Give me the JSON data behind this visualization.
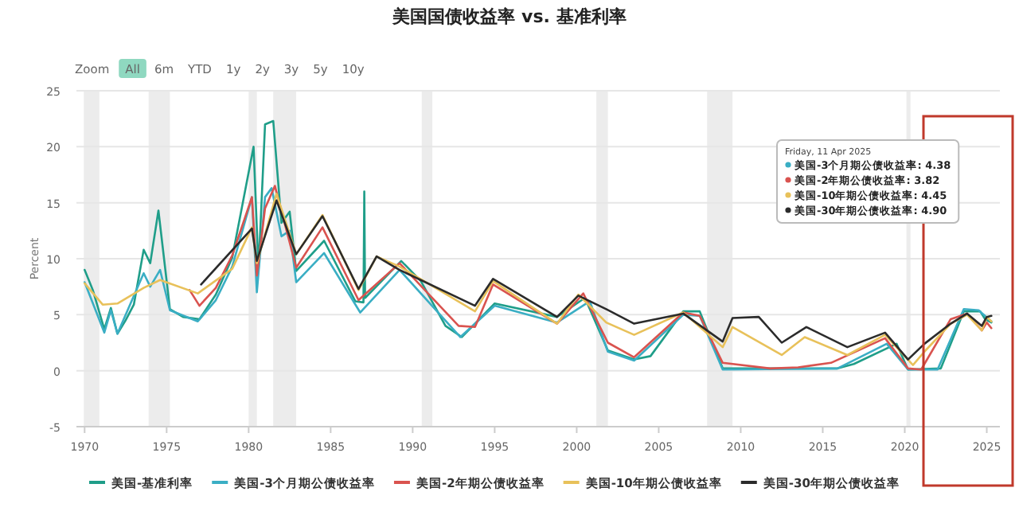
{
  "chart_data": {
    "type": "line",
    "title": "美国国债收益率 vs. 基准利率",
    "ylabel": "Percent",
    "xlim": [
      1969.5,
      2025.8
    ],
    "xticks": [
      1970,
      1975,
      1980,
      1985,
      1990,
      1995,
      2000,
      2005,
      2010,
      2015,
      2020,
      2025
    ],
    "ylim": [
      -5,
      25
    ],
    "yticks": [
      -5,
      0,
      5,
      10,
      15,
      20,
      25
    ],
    "grid": "y",
    "legend": "bottom",
    "line_style": "solid",
    "marker": "none",
    "series": [
      {
        "name": "美国-基准利率",
        "color": "#1f9e89",
        "x": [
          1970.0,
          1970.5,
          1971.2,
          1971.6,
          1972.0,
          1972.5,
          1973.0,
          1973.6,
          1974.0,
          1974.5,
          1975.2,
          1976.0,
          1977.0,
          1978.0,
          1979.0,
          1980.3,
          1980.6,
          1981.0,
          1981.5,
          1982.0,
          1982.5,
          1982.9,
          1984.6,
          1986.5,
          1987.0,
          1987.05,
          1987.1,
          1989.3,
          1990.5,
          1992.0,
          1993.0,
          1995.0,
          1998.8,
          2000.5,
          2001.9,
          2003.5,
          2004.5,
          2006.5,
          2007.5,
          2008.9,
          2015.9,
          2016.9,
          2019.5,
          2020.2,
          2022.2,
          2023.6,
          2024.6,
          2024.9,
          2025.28
        ],
        "values": [
          9.0,
          7.2,
          3.7,
          5.6,
          3.3,
          4.5,
          5.9,
          10.8,
          9.6,
          14.3,
          5.5,
          4.8,
          4.6,
          6.8,
          10.1,
          20.0,
          9.0,
          22.0,
          22.3,
          13.2,
          14.2,
          8.9,
          11.6,
          6.2,
          6.1,
          16.0,
          6.5,
          9.8,
          8.0,
          4.0,
          3.0,
          6.0,
          4.8,
          6.5,
          1.8,
          1.0,
          1.3,
          5.3,
          5.3,
          0.2,
          0.2,
          0.6,
          2.4,
          0.1,
          0.2,
          5.3,
          5.3,
          4.6,
          4.3
        ]
      },
      {
        "name": "美国-3个月期公债收益率",
        "color": "#3aaec4",
        "x": [
          1970.0,
          1971.2,
          1971.6,
          1972.0,
          1973.6,
          1974.0,
          1974.6,
          1975.2,
          1976.9,
          1978.0,
          1979.0,
          1980.2,
          1980.5,
          1981.0,
          1981.4,
          1982.0,
          1982.5,
          1982.9,
          1984.6,
          1986.8,
          1989.2,
          1992.9,
          1995.0,
          1998.8,
          2000.8,
          2001.9,
          2003.5,
          2006.5,
          2007.5,
          2008.9,
          2015.9,
          2018.9,
          2020.2,
          2022.0,
          2023.6,
          2024.5,
          2025.28
        ],
        "values": [
          7.9,
          3.4,
          5.4,
          3.3,
          8.7,
          7.5,
          9.0,
          5.4,
          4.4,
          6.3,
          9.3,
          15.5,
          7.0,
          15.5,
          16.3,
          12.0,
          12.5,
          7.9,
          10.5,
          5.2,
          9.0,
          3.0,
          5.8,
          4.3,
          6.2,
          1.7,
          0.9,
          5.0,
          4.9,
          0.1,
          0.2,
          2.4,
          0.1,
          0.1,
          5.5,
          5.4,
          4.4
        ]
      },
      {
        "name": "美国-2年期公债收益率",
        "color": "#d9534f",
        "x": [
          1976.4,
          1977.0,
          1978.0,
          1979.0,
          1980.2,
          1980.5,
          1981.0,
          1981.6,
          1982.9,
          1984.5,
          1986.7,
          1989.2,
          1992.8,
          1993.8,
          1994.9,
          1998.8,
          2000.4,
          2001.9,
          2003.5,
          2006.5,
          2007.5,
          2008.9,
          2011.8,
          2013.5,
          2015.5,
          2018.8,
          2020.2,
          2021.0,
          2022.8,
          2023.8,
          2024.7,
          2025.0,
          2025.28
        ],
        "values": [
          7.2,
          5.8,
          7.4,
          10.3,
          15.5,
          8.5,
          14.5,
          16.5,
          9.2,
          12.8,
          6.3,
          9.6,
          4.0,
          3.9,
          7.7,
          4.2,
          6.9,
          2.5,
          1.2,
          5.2,
          4.9,
          0.7,
          0.2,
          0.3,
          0.7,
          2.9,
          0.2,
          0.1,
          4.6,
          5.1,
          3.6,
          4.3,
          3.8
        ]
      },
      {
        "name": "美国-10年期公债收益率",
        "color": "#e8c15a",
        "x": [
          1970.0,
          1971.1,
          1972.0,
          1973.6,
          1974.6,
          1976.9,
          1979.0,
          1980.2,
          1980.5,
          1981.7,
          1982.9,
          1984.5,
          1986.7,
          1987.8,
          1989.2,
          1993.8,
          1994.9,
          1998.8,
          2000.1,
          2001.8,
          2003.5,
          2006.5,
          2008.9,
          2009.5,
          2012.5,
          2013.9,
          2016.5,
          2018.8,
          2020.5,
          2021.2,
          2022.8,
          2023.8,
          2024.7,
          2025.0,
          2025.28
        ],
        "values": [
          7.8,
          5.9,
          6.0,
          7.4,
          8.1,
          6.9,
          9.1,
          12.8,
          9.6,
          15.8,
          10.4,
          13.9,
          7.2,
          10.2,
          9.3,
          5.3,
          8.0,
          4.2,
          6.8,
          4.3,
          3.2,
          5.2,
          2.1,
          3.9,
          1.4,
          3.0,
          1.4,
          3.2,
          0.5,
          1.7,
          4.2,
          5.0,
          3.6,
          4.8,
          4.4
        ]
      },
      {
        "name": "美国-30年期公债收益率",
        "color": "#2b2b2b",
        "x": [
          1977.1,
          1980.2,
          1980.5,
          1981.7,
          1982.9,
          1984.5,
          1986.7,
          1987.8,
          1989.2,
          1993.8,
          1994.9,
          1998.8,
          2000.1,
          2001.8,
          2003.5,
          2006.5,
          2008.9,
          2009.5,
          2011.1,
          2012.5,
          2014.0,
          2016.5,
          2018.8,
          2020.2,
          2021.2,
          2022.8,
          2023.8,
          2024.7,
          2025.0,
          2025.28
        ],
        "values": [
          7.7,
          12.7,
          9.8,
          15.2,
          10.4,
          13.8,
          7.3,
          10.2,
          9.0,
          5.8,
          8.2,
          4.8,
          6.7,
          5.5,
          4.2,
          5.1,
          2.6,
          4.7,
          4.8,
          2.5,
          3.9,
          2.1,
          3.4,
          1.0,
          2.4,
          4.2,
          5.1,
          4.0,
          4.8,
          4.9
        ]
      }
    ],
    "bands": [
      {
        "axis": "x",
        "from": 1969.95,
        "to": 1970.9,
        "color": "#ececec"
      },
      {
        "axis": "x",
        "from": 1973.9,
        "to": 1975.2,
        "color": "#ececec"
      },
      {
        "axis": "x",
        "from": 1980.0,
        "to": 1980.5,
        "color": "#ececec"
      },
      {
        "axis": "x",
        "from": 1981.5,
        "to": 1982.9,
        "color": "#ececec"
      },
      {
        "axis": "x",
        "from": 1990.55,
        "to": 1991.2,
        "color": "#ececec"
      },
      {
        "axis": "x",
        "from": 2001.2,
        "to": 2001.9,
        "color": "#ececec"
      },
      {
        "axis": "x",
        "from": 2007.95,
        "to": 2009.5,
        "color": "#ececec"
      },
      {
        "axis": "x",
        "from": 2020.1,
        "to": 2020.35,
        "color": "#ececec"
      }
    ],
    "annotations": [
      "Zoom",
      "All",
      "6m",
      "YTD",
      "1y",
      "2y",
      "3y",
      "5y",
      "10y",
      "Friday, 11 Apr 2025",
      "美国-3个月期公债收益率: 4.38",
      "美国-2年期公债收益率: 3.82",
      "美国-10年期公债收益率: 4.45",
      "美国-30年期公债收益率: 4.90"
    ]
  }
}
